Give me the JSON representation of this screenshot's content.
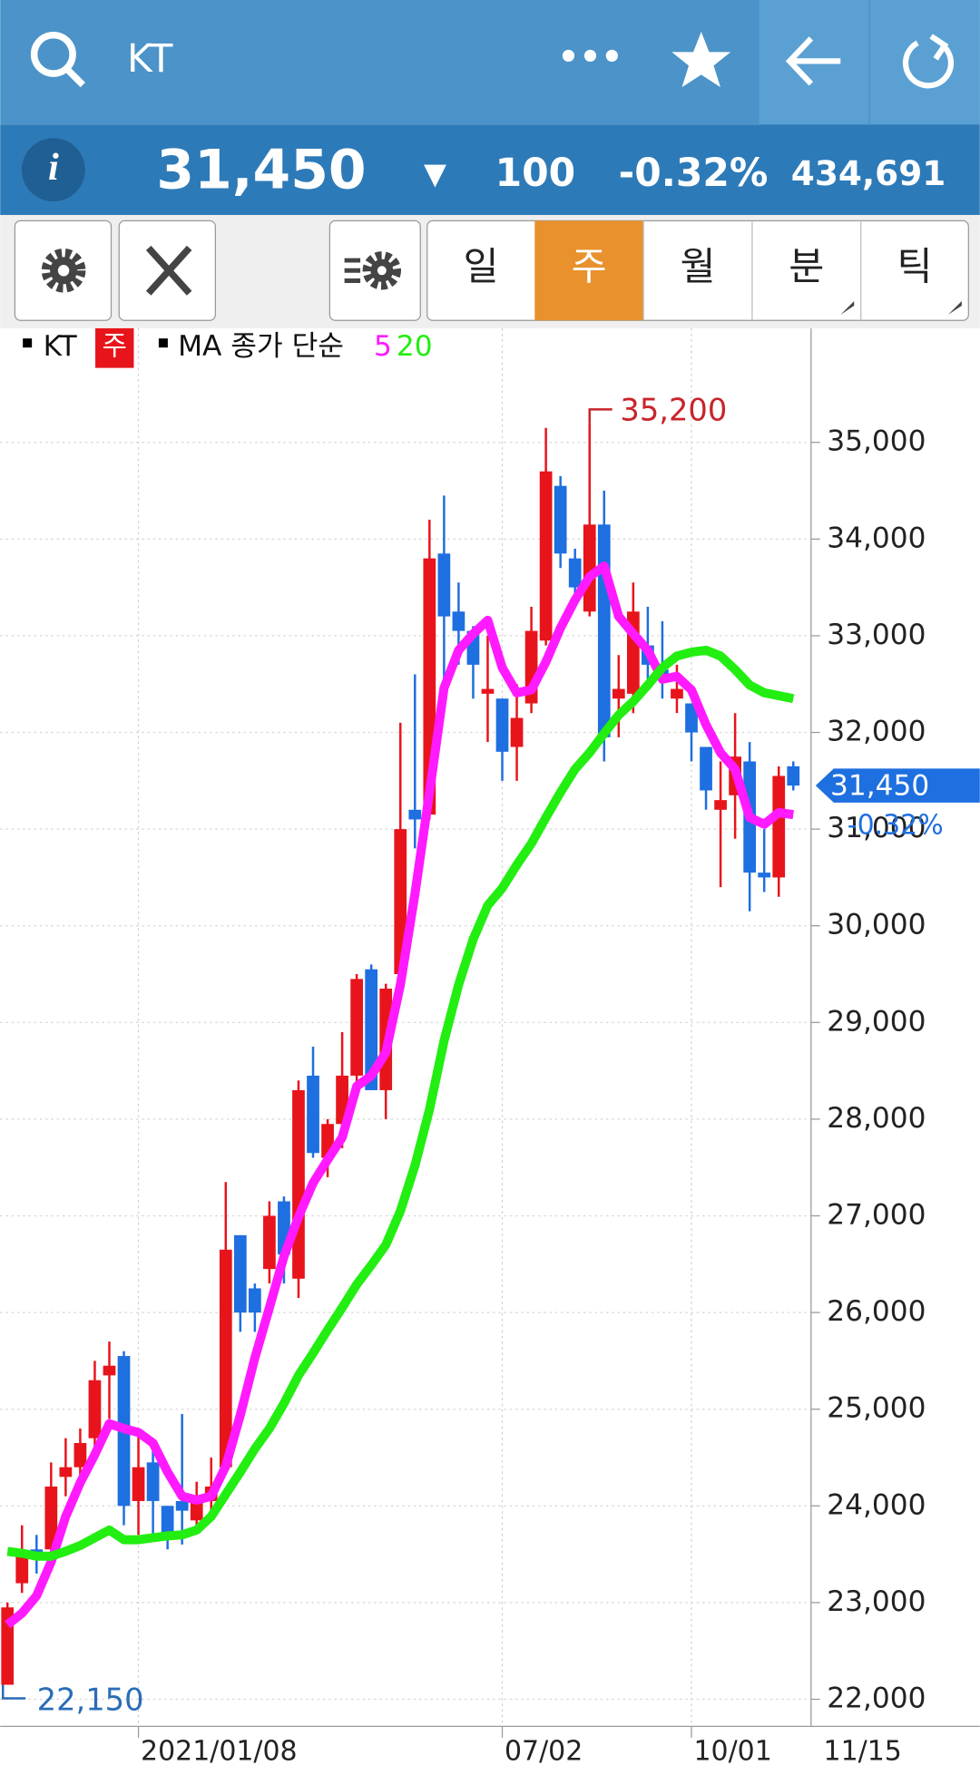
{
  "header": {
    "title": "KT",
    "menu": "•••"
  },
  "quote": {
    "price": "31,450",
    "direction": "▼",
    "change": "100",
    "change_pct": "-0.32%",
    "volume": "434,691"
  },
  "tabs": [
    "일",
    "주",
    "월",
    "분",
    "틱"
  ],
  "chart_data": {
    "type": "candlestick",
    "legend": {
      "symbol": "KT",
      "period": "주",
      "ma_label": "MA 종가 단순"
    },
    "categories": [
      null,
      null,
      null,
      null,
      null,
      null,
      null,
      null,
      null,
      "2021/01/08",
      null,
      null,
      null,
      null,
      null,
      null,
      null,
      null,
      null,
      null,
      null,
      null,
      null,
      null,
      null,
      null,
      null,
      null,
      null,
      null,
      null,
      null,
      null,
      null,
      "07/02",
      null,
      null,
      null,
      null,
      null,
      null,
      null,
      null,
      null,
      null,
      null,
      null,
      "10/01",
      null,
      null,
      null,
      null,
      null,
      null,
      null
    ],
    "x_end_label": "11/15",
    "candles": {
      "up_color": "#e8141b",
      "down_color": "#1e6fe0",
      "open": [
        22150,
        23200,
        23550,
        23550,
        24300,
        24400,
        24700,
        25350,
        25550,
        24050,
        24450,
        24000,
        24050,
        23850,
        24050,
        24400,
        26800,
        26250,
        26450,
        27150,
        26350,
        28450,
        27600,
        27950,
        28450,
        29550,
        28300,
        29500,
        31200,
        31150,
        33850,
        33250,
        33050,
        32400,
        32350,
        31850,
        32300,
        32950,
        34550,
        33800,
        33250,
        34150,
        32350,
        32400,
        32900,
        32650,
        32350,
        32300,
        31850,
        31200,
        31350,
        31700,
        30550,
        30500,
        31650
      ],
      "high": [
        23000,
        23800,
        23700,
        24450,
        24700,
        24800,
        25500,
        25700,
        25600,
        24800,
        24700,
        24000,
        24950,
        24250,
        24500,
        27350,
        26800,
        26300,
        27150,
        27200,
        28400,
        28750,
        28000,
        28900,
        29500,
        29600,
        29400,
        32100,
        32600,
        34200,
        34450,
        33550,
        33100,
        33000,
        32350,
        32500,
        33300,
        35150,
        34650,
        33900,
        35200,
        34500,
        32800,
        33550,
        33300,
        33150,
        32700,
        32300,
        31850,
        31700,
        32200,
        31900,
        31000,
        31650,
        31700
      ],
      "low": [
        22150,
        23100,
        23300,
        23500,
        24100,
        24250,
        24600,
        24900,
        23800,
        23700,
        23700,
        23550,
        23600,
        23800,
        23900,
        24400,
        25800,
        25800,
        26300,
        26300,
        26150,
        27600,
        27400,
        27700,
        28300,
        28300,
        28000,
        29400,
        30800,
        31100,
        32400,
        32700,
        32350,
        31900,
        31500,
        31500,
        32200,
        32900,
        33700,
        33300,
        33200,
        31700,
        31950,
        32200,
        32500,
        32350,
        32200,
        31700,
        31200,
        30400,
        30900,
        30150,
        30350,
        30300,
        31400
      ],
      "close": [
        22950,
        23500,
        23500,
        24200,
        24400,
        24650,
        25300,
        25450,
        24000,
        24400,
        24050,
        23700,
        23950,
        24050,
        24200,
        26650,
        26000,
        26000,
        27000,
        26600,
        28300,
        27650,
        27950,
        28450,
        29450,
        28300,
        29350,
        31000,
        31100,
        33800,
        33200,
        33050,
        32700,
        32450,
        31800,
        32150,
        33050,
        34700,
        33850,
        33500,
        34150,
        31950,
        32450,
        33250,
        32700,
        32550,
        32450,
        32000,
        31400,
        31300,
        31750,
        30550,
        30500,
        31550,
        31450
      ]
    },
    "series": [
      {
        "name": "5",
        "color": "#ff1aff",
        "values": [
          22770,
          22890,
          23070,
          23420,
          23890,
          24240,
          24530,
          24850,
          24800,
          24760,
          24650,
          24350,
          24100,
          24060,
          24100,
          24410,
          24940,
          25530,
          26050,
          26580,
          26990,
          27340,
          27580,
          27810,
          28340,
          28450,
          28690,
          29390,
          30330,
          31380,
          32460,
          32850,
          33020,
          33160,
          32670,
          32410,
          32440,
          32730,
          33080,
          33370,
          33610,
          33720,
          33200,
          33020,
          32850,
          32550,
          32580,
          32440,
          32080,
          31790,
          31620,
          31120,
          31050,
          31170,
          31150
        ]
      },
      {
        "name": "20",
        "color": "#22ee11",
        "values": [
          23530,
          23510,
          23480,
          23480,
          23530,
          23590,
          23670,
          23750,
          23650,
          23650,
          23670,
          23690,
          23700,
          23750,
          23890,
          24120,
          24350,
          24590,
          24800,
          25060,
          25350,
          25580,
          25820,
          26050,
          26290,
          26490,
          26700,
          27050,
          27520,
          28100,
          28810,
          29390,
          29860,
          30210,
          30390,
          30630,
          30850,
          31120,
          31380,
          31620,
          31790,
          31990,
          32180,
          32320,
          32490,
          32670,
          32790,
          32830,
          32850,
          32790,
          32650,
          32490,
          32410,
          32380,
          32350
        ]
      }
    ],
    "high_label": "35,200",
    "low_label": "22,150",
    "last_price": 31450,
    "last_price_label": "31,450",
    "last_change": -0.32,
    "last_change_label": "-0.32%",
    "ylim": [
      21720,
      36180
    ],
    "yticks": [
      {
        "value": 22000,
        "label": "22,000"
      },
      {
        "value": 23000,
        "label": "23,000"
      },
      {
        "value": 24000,
        "label": "24,000"
      },
      {
        "value": 25000,
        "label": "25,000"
      },
      {
        "value": 26000,
        "label": "26,000"
      },
      {
        "value": 27000,
        "label": "27,000"
      },
      {
        "value": 28000,
        "label": "28,000"
      },
      {
        "value": 29000,
        "label": "29,000"
      },
      {
        "value": 30000,
        "label": "30,000"
      },
      {
        "value": 31000,
        "label": "31,000"
      },
      {
        "value": 32000,
        "label": "32,000"
      },
      {
        "value": 33000,
        "label": "33,000"
      },
      {
        "value": 34000,
        "label": "34,000"
      },
      {
        "value": 35000,
        "label": "35,000"
      }
    ],
    "grid": true
  }
}
